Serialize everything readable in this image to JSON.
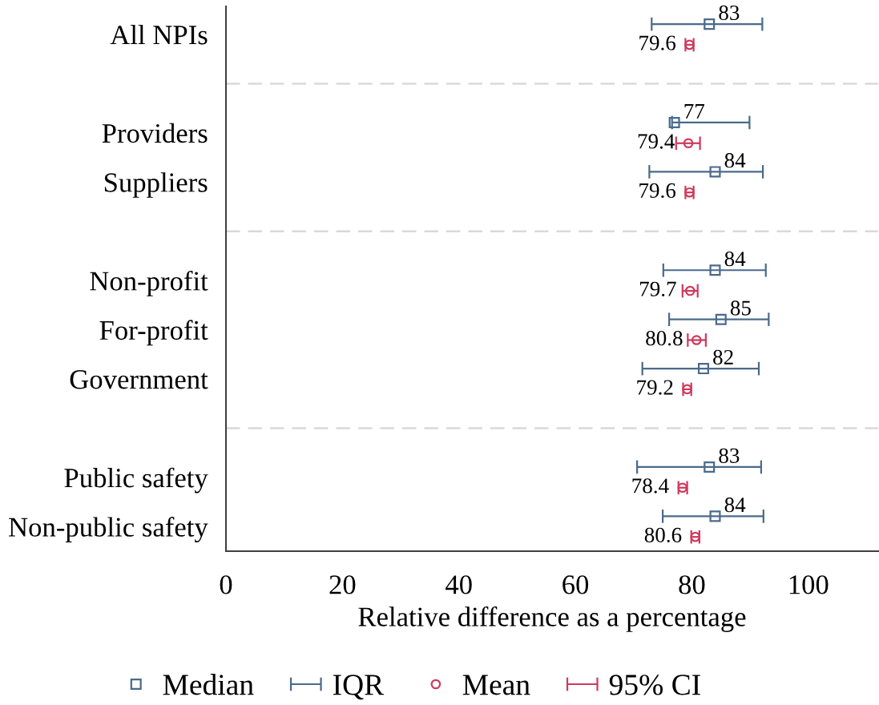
{
  "chart_data": {
    "type": "scatter",
    "orientation": "horizontal",
    "xlabel": "Relative difference as a percentage",
    "categories": [
      "All NPIs",
      null,
      "Providers",
      "Suppliers",
      null,
      "Non-profit",
      "For-profit",
      "Government",
      null,
      "Public safety",
      "Non-public safety"
    ],
    "xlim": [
      0,
      112
    ],
    "xticks": [
      0,
      20,
      40,
      60,
      80,
      100
    ],
    "legend": "bottom",
    "grid": "y",
    "series": [
      {
        "name": "Median",
        "marker": "square",
        "color": "#4a6a8c",
        "values": [
          83,
          null,
          77,
          84,
          null,
          84,
          85,
          82,
          null,
          83,
          84
        ],
        "value_labels": [
          "83",
          null,
          "77",
          "84",
          null,
          "84",
          "85",
          "82",
          null,
          "83",
          "84"
        ],
        "errors": [
          [
            73.1,
            92.1
          ],
          null,
          [
            76.6,
            89.9
          ],
          [
            72.7,
            92.2
          ],
          null,
          [
            75.1,
            92.7
          ],
          [
            76.1,
            93.2
          ],
          [
            71.5,
            91.5
          ],
          null,
          [
            70.6,
            91.9
          ],
          [
            75.0,
            92.3
          ]
        ]
      },
      {
        "name": "IQR",
        "marker": "none",
        "color": "#4a6a8c",
        "values": [
          null,
          null,
          null,
          null,
          null,
          null,
          null,
          null,
          null,
          null,
          null
        ]
      },
      {
        "name": "Mean",
        "marker": "circle",
        "color": "#cf3a5c",
        "values": [
          79.6,
          null,
          79.4,
          79.6,
          null,
          79.7,
          80.8,
          79.2,
          null,
          78.4,
          80.6
        ],
        "value_labels": [
          "79.6",
          null,
          "79.4",
          "79.6",
          null,
          "79.7",
          "80.8",
          "79.2",
          null,
          "78.4",
          "80.6"
        ],
        "errors": [
          [
            78.9,
            80.3
          ],
          null,
          [
            77.3,
            81.4
          ],
          [
            78.9,
            80.3
          ],
          null,
          [
            78.4,
            81.0
          ],
          [
            79.3,
            82.4
          ],
          [
            78.5,
            79.9
          ],
          null,
          [
            77.7,
            79.2
          ],
          [
            79.9,
            81.3
          ]
        ]
      },
      {
        "name": "95% CI",
        "marker": "none",
        "color": "#cf3a5c",
        "values": [
          null,
          null,
          null,
          null,
          null,
          null,
          null,
          null,
          null,
          null,
          null
        ]
      }
    ]
  }
}
